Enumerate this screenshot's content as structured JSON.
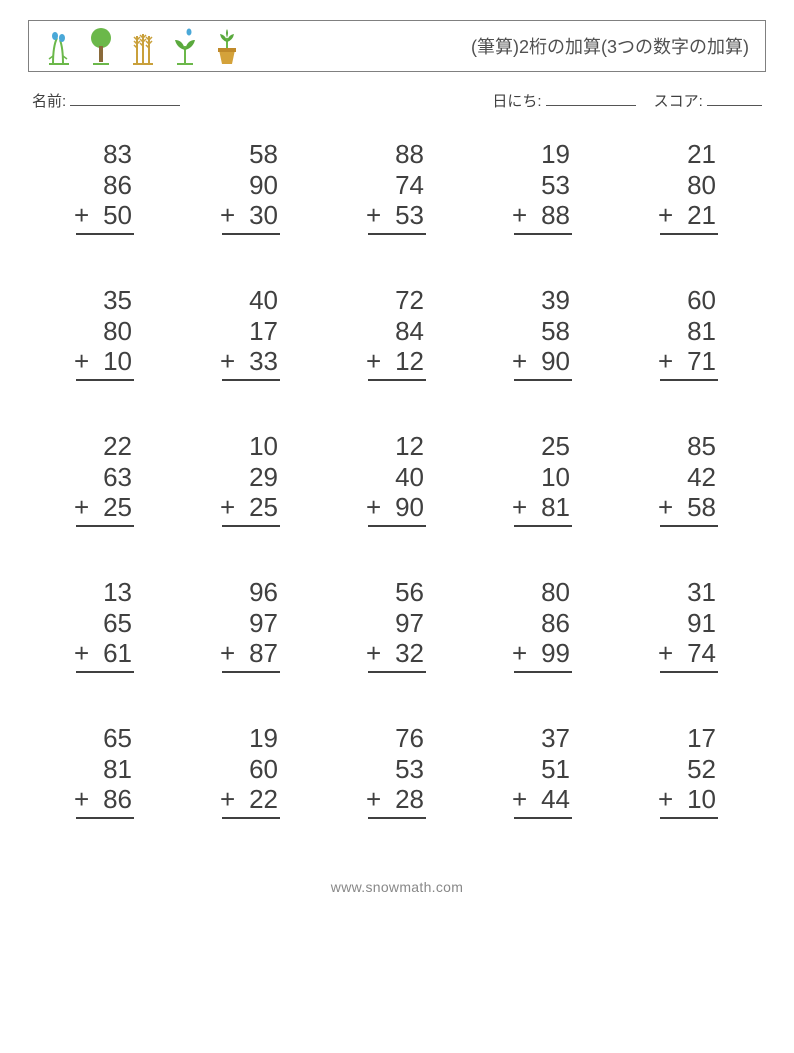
{
  "title": "(筆算)2桁の加算(3つの数字の加算)",
  "meta": {
    "name_label": "名前:",
    "date_label": "日にち:",
    "score_label": "スコア:"
  },
  "operator": "+",
  "icon_colors": {
    "blue": "#4aa8d8",
    "green": "#6bb84a",
    "tan": "#c9a03b",
    "leaf": "#5aa93d",
    "pot": "#d4a23a"
  },
  "text_color": "#404040",
  "border_color": "#808080",
  "background_color": "#ffffff",
  "font_size_problem": 26,
  "font_size_title": 18,
  "font_size_meta": 15,
  "problems": [
    [
      {
        "a": 83,
        "b": 86,
        "c": 50
      },
      {
        "a": 58,
        "b": 90,
        "c": 30
      },
      {
        "a": 88,
        "b": 74,
        "c": 53
      },
      {
        "a": 19,
        "b": 53,
        "c": 88
      },
      {
        "a": 21,
        "b": 80,
        "c": 21
      }
    ],
    [
      {
        "a": 35,
        "b": 80,
        "c": 10
      },
      {
        "a": 40,
        "b": 17,
        "c": 33
      },
      {
        "a": 72,
        "b": 84,
        "c": 12
      },
      {
        "a": 39,
        "b": 58,
        "c": 90
      },
      {
        "a": 60,
        "b": 81,
        "c": 71
      }
    ],
    [
      {
        "a": 22,
        "b": 63,
        "c": 25
      },
      {
        "a": 10,
        "b": 29,
        "c": 25
      },
      {
        "a": 12,
        "b": 40,
        "c": 90
      },
      {
        "a": 25,
        "b": 10,
        "c": 81
      },
      {
        "a": 85,
        "b": 42,
        "c": 58
      }
    ],
    [
      {
        "a": 13,
        "b": 65,
        "c": 61
      },
      {
        "a": 96,
        "b": 97,
        "c": 87
      },
      {
        "a": 56,
        "b": 97,
        "c": 32
      },
      {
        "a": 80,
        "b": 86,
        "c": 99
      },
      {
        "a": 31,
        "b": 91,
        "c": 74
      }
    ],
    [
      {
        "a": 65,
        "b": 81,
        "c": 86
      },
      {
        "a": 19,
        "b": 60,
        "c": 22
      },
      {
        "a": 76,
        "b": 53,
        "c": 28
      },
      {
        "a": 37,
        "b": 51,
        "c": 44
      },
      {
        "a": 17,
        "b": 52,
        "c": 10
      }
    ]
  ],
  "footer": "www.snowmath.com"
}
